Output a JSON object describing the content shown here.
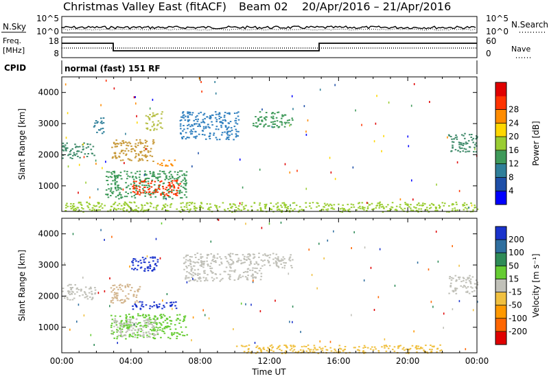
{
  "header": {
    "title": "Christmas Valley East (fitACF)",
    "beam": "Beam 02",
    "date_range": "20/Apr/2016 – 21/Apr/2016"
  },
  "status_panels": {
    "nsky_label": "N.Sky",
    "nsearch_label": "N.Search",
    "noise_ticks_left": [
      "10^5",
      "10^0"
    ],
    "noise_ticks_right": [
      "10^5",
      "10^0"
    ],
    "freq_label_line1": "Freq.",
    "freq_label_line2": "[MHz]",
    "freq_ticks": [
      "18",
      "8"
    ],
    "nave_ticks": [
      "60",
      "0"
    ],
    "nave_label": "Nave",
    "cpid_label": "CPID",
    "cpid_text": "normal (fast) 151 RF"
  },
  "chart_data": [
    {
      "type": "heatmap",
      "title": "",
      "ylabel": "Slant Range [km]",
      "xlabel": "",
      "yticks": [
        "1000",
        "2000",
        "3000",
        "4000"
      ],
      "ylim": [
        180,
        4500
      ],
      "colorbar": {
        "label": "Power [dB]",
        "ticks": [
          "4",
          "8",
          "12",
          "16",
          "20",
          "24",
          "28"
        ],
        "colors": [
          "#0000ff",
          "#1e4fa8",
          "#2f7f9a",
          "#3f9a5a",
          "#9acd32",
          "#ffd700",
          "#ff8c00",
          "#ff3300",
          "#e00000"
        ]
      },
      "features": [
        {
          "name": "echo-a",
          "x_hours": [
            0.0,
            1.9
          ],
          "y_km": [
            1900,
            2400
          ],
          "color": "#3f8a6a"
        },
        {
          "name": "echo-b",
          "x_hours": [
            1.8,
            2.4
          ],
          "y_km": [
            2700,
            3200
          ],
          "color": "#2f7f9a"
        },
        {
          "name": "echo-c",
          "x_hours": [
            2.8,
            5.3
          ],
          "y_km": [
            1800,
            2500
          ],
          "color": "#c89a3a"
        },
        {
          "name": "echo-d",
          "x_hours": [
            4.8,
            5.8
          ],
          "y_km": [
            2800,
            3400
          ],
          "color": "#b8c04a"
        },
        {
          "name": "echo-e",
          "x_hours": [
            5.5,
            6.5
          ],
          "y_km": [
            1650,
            1850
          ],
          "color": "#ff8c00"
        },
        {
          "name": "echo-f",
          "x_hours": [
            2.5,
            7.2
          ],
          "y_km": [
            600,
            1500
          ],
          "color": "#3f9a5a"
        },
        {
          "name": "echo-g",
          "x_hours": [
            4.0,
            6.8
          ],
          "y_km": [
            700,
            1200
          ],
          "color": "#ff3300"
        },
        {
          "name": "echo-h",
          "x_hours": [
            6.8,
            10.2
          ],
          "y_km": [
            2500,
            3400
          ],
          "color": "#2f7fbf"
        },
        {
          "name": "echo-i",
          "x_hours": [
            11.0,
            13.3
          ],
          "y_km": [
            2900,
            3400
          ],
          "color": "#3f9a5a"
        },
        {
          "name": "echo-j",
          "x_hours": [
            22.3,
            24.0
          ],
          "y_km": [
            2100,
            2700
          ],
          "color": "#3f8a6a"
        },
        {
          "name": "echo-k",
          "x_hours": [
            0.0,
            24.0
          ],
          "y_km": [
            180,
            500
          ],
          "color": "#9acd32"
        }
      ]
    },
    {
      "type": "heatmap",
      "title": "",
      "ylabel": "Slant Range [km]",
      "xlabel": "Time UT",
      "yticks": [
        "1000",
        "2000",
        "3000",
        "4000"
      ],
      "xticks": [
        "00:00",
        "04:00",
        "08:00",
        "12:00",
        "16:00",
        "20:00",
        "00:00"
      ],
      "xlim": [
        0,
        24
      ],
      "ylim": [
        180,
        4500
      ],
      "colorbar": {
        "label": "Velocity [m s⁻¹]",
        "ticks": [
          "200",
          "100",
          "50",
          "15",
          "-15",
          "-50",
          "-100",
          "-200"
        ],
        "colors": [
          "#1a33cc",
          "#2f6f9f",
          "#2e8b57",
          "#66cc33",
          "#c0c0b8",
          "#f0c040",
          "#ff9900",
          "#ff6600",
          "#e00000"
        ]
      },
      "features": [
        {
          "name": "echo-a",
          "x_hours": [
            0.0,
            1.9
          ],
          "y_km": [
            1900,
            2400
          ],
          "color": "#c0c0b8"
        },
        {
          "name": "echo-b",
          "x_hours": [
            2.8,
            4.6
          ],
          "y_km": [
            1800,
            2400
          ],
          "color": "#d2b48c"
        },
        {
          "name": "echo-c",
          "x_hours": [
            4.0,
            5.6
          ],
          "y_km": [
            2800,
            3300
          ],
          "color": "#1a33cc"
        },
        {
          "name": "echo-d",
          "x_hours": [
            4.0,
            6.6
          ],
          "y_km": [
            1600,
            1850
          ],
          "color": "#1a33cc"
        },
        {
          "name": "echo-e",
          "x_hours": [
            2.8,
            7.2
          ],
          "y_km": [
            650,
            1450
          ],
          "color": "#66cc33"
        },
        {
          "name": "echo-f",
          "x_hours": [
            2.8,
            5.5
          ],
          "y_km": [
            700,
            1300
          ],
          "color": "#c0c0b8"
        },
        {
          "name": "echo-g",
          "x_hours": [
            7.0,
            11.5
          ],
          "y_km": [
            2500,
            3400
          ],
          "color": "#c0c0b8"
        },
        {
          "name": "echo-h",
          "x_hours": [
            11.5,
            13.3
          ],
          "y_km": [
            2900,
            3400
          ],
          "color": "#c0c0b8"
        },
        {
          "name": "echo-i",
          "x_hours": [
            22.3,
            24.0
          ],
          "y_km": [
            2100,
            2700
          ],
          "color": "#c0c0b8"
        },
        {
          "name": "echo-j",
          "x_hours": [
            10.0,
            22.0
          ],
          "y_km": [
            180,
            450
          ],
          "color": "#f0c040"
        }
      ]
    }
  ]
}
